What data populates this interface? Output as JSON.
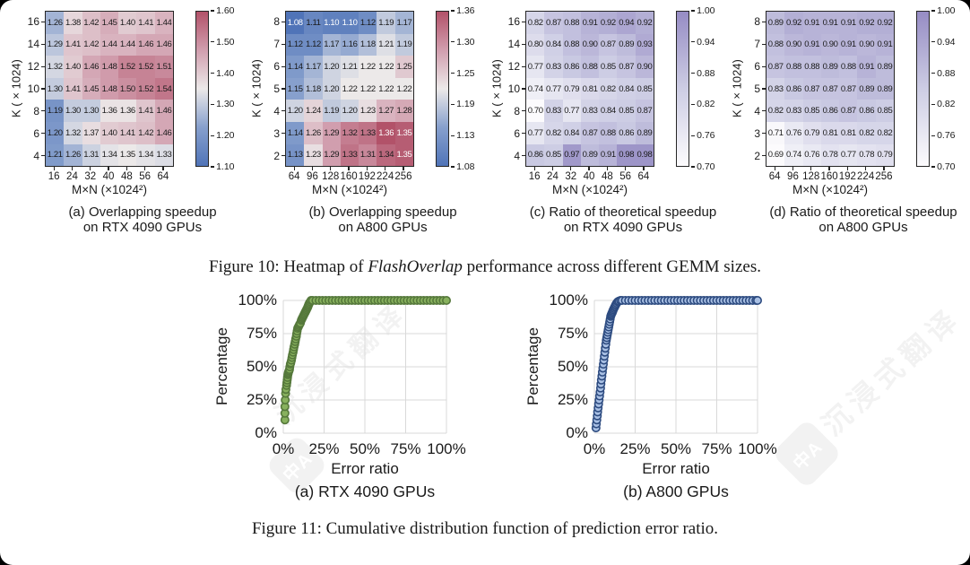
{
  "figure10_caption": {
    "prefix": "Figure 10: Heatmap of ",
    "italic": "FlashOverlap",
    "suffix": " performance across different GEMM sizes."
  },
  "figure11_caption": "Figure 11: Cumulative distribution function of prediction error ratio.",
  "watermark": {
    "text": "沉浸式翻译",
    "logo_text": "中A"
  },
  "chart_data": [
    {
      "id": "fig10a",
      "type": "heatmap",
      "title_line1": "(a) Overlapping speedup",
      "title_line2": "on RTX 4090 GPUs",
      "xlabel": "M×N (×1024²)",
      "ylabel": "K (×1024)",
      "x_categories": [
        "16",
        "24",
        "32",
        "40",
        "48",
        "56",
        "64"
      ],
      "y_categories": [
        "16",
        "14",
        "12",
        "10",
        "8",
        "6",
        "4"
      ],
      "vmin": 1.1,
      "vmax": 1.6,
      "colorbar_ticks": [
        "1.60",
        "1.50",
        "1.40",
        "1.30",
        "1.20",
        "1.10"
      ],
      "colormap": "diverging-blue-red",
      "colormap_anchors": [
        "#5074b8",
        "#87a0cd",
        "#ece9e9",
        "#d19eae",
        "#b25269"
      ],
      "values": [
        [
          "1.26",
          "1.38",
          "1.42",
          "1.45",
          "1.40",
          "1.41",
          "1.44"
        ],
        [
          "1.29",
          "1.41",
          "1.42",
          "1.44",
          "1.44",
          "1.46",
          "1.46"
        ],
        [
          "1.32",
          "1.40",
          "1.46",
          "1.48",
          "1.52",
          "1.52",
          "1.51"
        ],
        [
          "1.30",
          "1.41",
          "1.45",
          "1.48",
          "1.50",
          "1.52",
          "1.54"
        ],
        [
          "1.19",
          "1.30",
          "1.30",
          "1.36",
          "1.36",
          "1.41",
          "1.46"
        ],
        [
          "1.20",
          "1.32",
          "1.37",
          "1.40",
          "1.41",
          "1.42",
          "1.46"
        ],
        [
          "1.21",
          "1.26",
          "1.31",
          "1.34",
          "1.35",
          "1.34",
          "1.33"
        ]
      ]
    },
    {
      "id": "fig10b",
      "type": "heatmap",
      "title_line1": "(b) Overlapping speedup",
      "title_line2": "on A800 GPUs",
      "xlabel": "M×N (×1024²)",
      "ylabel": "K (×1024)",
      "x_categories": [
        "64",
        "96",
        "128",
        "160",
        "192",
        "224",
        "256"
      ],
      "y_categories": [
        "8",
        "7",
        "6",
        "5",
        "4",
        "3",
        "2"
      ],
      "vmin": 1.08,
      "vmax": 1.36,
      "colorbar_ticks": [
        "1.36",
        "1.30",
        "1.25",
        "1.19",
        "1.13",
        "1.08"
      ],
      "colormap": "diverging-blue-red",
      "colormap_anchors": [
        "#5074b8",
        "#87a0cd",
        "#ece9e9",
        "#d19eae",
        "#b25269"
      ],
      "values": [
        [
          "1.08",
          "1.11",
          "1.10",
          "1.10",
          "1.12",
          "1.19",
          "1.17"
        ],
        [
          "1.12",
          "1.12",
          "1.17",
          "1.16",
          "1.18",
          "1.21",
          "1.19"
        ],
        [
          "1.14",
          "1.17",
          "1.20",
          "1.21",
          "1.22",
          "1.22",
          "1.25"
        ],
        [
          "1.15",
          "1.18",
          "1.20",
          "1.22",
          "1.22",
          "1.22",
          "1.22"
        ],
        [
          "1.20",
          "1.24",
          "1.19",
          "1.20",
          "1.23",
          "1.27",
          "1.28"
        ],
        [
          "1.14",
          "1.26",
          "1.29",
          "1.32",
          "1.33",
          "1.36",
          "1.35"
        ],
        [
          "1.13",
          "1.23",
          "1.29",
          "1.33",
          "1.31",
          "1.34",
          "1.35"
        ]
      ]
    },
    {
      "id": "fig10c",
      "type": "heatmap",
      "title_line1": "(c) Ratio of theoretical speedup",
      "title_line2": "on RTX 4090 GPUs",
      "xlabel": "M×N (×1024²)",
      "ylabel": "K (×1024)",
      "x_categories": [
        "16",
        "24",
        "32",
        "40",
        "48",
        "56",
        "64"
      ],
      "y_categories": [
        "16",
        "14",
        "12",
        "10",
        "8",
        "6",
        "4"
      ],
      "vmin": 0.7,
      "vmax": 1.0,
      "colorbar_ticks": [
        "1.00",
        "0.94",
        "0.88",
        "0.82",
        "0.76",
        "0.70"
      ],
      "colormap": "purples",
      "colormap_anchors": [
        "#fcfbfd",
        "#cdcde4",
        "#968cc4"
      ],
      "values": [
        [
          "0.82",
          "0.87",
          "0.88",
          "0.91",
          "0.92",
          "0.94",
          "0.92"
        ],
        [
          "0.80",
          "0.84",
          "0.88",
          "0.90",
          "0.87",
          "0.89",
          "0.93"
        ],
        [
          "0.77",
          "0.83",
          "0.86",
          "0.88",
          "0.85",
          "0.87",
          "0.90"
        ],
        [
          "0.74",
          "0.77",
          "0.79",
          "0.81",
          "0.82",
          "0.84",
          "0.85"
        ],
        [
          "0.70",
          "0.83",
          "0.77",
          "0.83",
          "0.84",
          "0.85",
          "0.87"
        ],
        [
          "0.77",
          "0.82",
          "0.84",
          "0.87",
          "0.88",
          "0.86",
          "0.89"
        ],
        [
          "0.86",
          "0.85",
          "0.97",
          "0.89",
          "0.91",
          "0.98",
          "0.98"
        ]
      ]
    },
    {
      "id": "fig10d",
      "type": "heatmap",
      "title_line1": "(d) Ratio of theoretical speedup",
      "title_line2": "on A800 GPUs",
      "xlabel": "M×N (×1024²)",
      "ylabel": "K (×1024)",
      "x_categories": [
        "64",
        "96",
        "128",
        "160",
        "192",
        "224",
        "256"
      ],
      "y_categories": [
        "8",
        "7",
        "6",
        "5",
        "4",
        "3",
        "2"
      ],
      "vmin": 0.7,
      "vmax": 1.0,
      "colorbar_ticks": [
        "1.00",
        "0.94",
        "0.88",
        "0.82",
        "0.76",
        "0.70"
      ],
      "colormap": "purples",
      "colormap_anchors": [
        "#fcfbfd",
        "#cdcde4",
        "#968cc4"
      ],
      "values": [
        [
          "0.89",
          "0.92",
          "0.91",
          "0.91",
          "0.91",
          "0.92",
          "0.92"
        ],
        [
          "0.88",
          "0.90",
          "0.91",
          "0.90",
          "0.91",
          "0.90",
          "0.91"
        ],
        [
          "0.87",
          "0.88",
          "0.88",
          "0.89",
          "0.88",
          "0.91",
          "0.89"
        ],
        [
          "0.83",
          "0.86",
          "0.87",
          "0.87",
          "0.87",
          "0.89",
          "0.89"
        ],
        [
          "0.82",
          "0.83",
          "0.85",
          "0.86",
          "0.87",
          "0.86",
          "0.85"
        ],
        [
          "0.71",
          "0.76",
          "0.79",
          "0.81",
          "0.81",
          "0.82",
          "0.82"
        ],
        [
          "0.69",
          "0.74",
          "0.76",
          "0.78",
          "0.77",
          "0.78",
          "0.79"
        ]
      ]
    },
    {
      "id": "fig11a",
      "type": "scatter",
      "caption": "(a) RTX 4090 GPUs",
      "xlabel": "Error ratio",
      "ylabel": "Percentage",
      "xlim": [
        0,
        100
      ],
      "ylim": [
        0,
        100
      ],
      "grid": true,
      "xticks": [
        "0%",
        "25%",
        "50%",
        "75%",
        "100%"
      ],
      "yticks": [
        "0%",
        "25%",
        "50%",
        "75%",
        "100%"
      ],
      "marker_edge": "#55783b",
      "marker_fill": "#88b15e",
      "points": [
        [
          1,
          10
        ],
        [
          1,
          15
        ],
        [
          1,
          20
        ],
        [
          1.2,
          25
        ],
        [
          1.4,
          30
        ],
        [
          1.6,
          33
        ],
        [
          2,
          36
        ],
        [
          2.2,
          38
        ],
        [
          2.4,
          40
        ],
        [
          2.6,
          42
        ],
        [
          2.8,
          44
        ],
        [
          3,
          45
        ],
        [
          3.2,
          46
        ],
        [
          3.5,
          47
        ],
        [
          3.8,
          48
        ],
        [
          4,
          50
        ],
        [
          4.3,
          52
        ],
        [
          4.6,
          53
        ],
        [
          5,
          55
        ],
        [
          5.3,
          57
        ],
        [
          5.6,
          59
        ],
        [
          6,
          61
        ],
        [
          6.3,
          63
        ],
        [
          6.6,
          65
        ],
        [
          7,
          67
        ],
        [
          7.3,
          69
        ],
        [
          7.6,
          71
        ],
        [
          8,
          73
        ],
        [
          8.2,
          75
        ],
        [
          8.5,
          77
        ],
        [
          8.8,
          79
        ],
        [
          9.2,
          80
        ],
        [
          9.6,
          81
        ],
        [
          10,
          82
        ],
        [
          10.5,
          83
        ],
        [
          11,
          85
        ],
        [
          11.4,
          86
        ],
        [
          11.8,
          87
        ],
        [
          12.2,
          88
        ],
        [
          12.6,
          89
        ],
        [
          13,
          90
        ],
        [
          13.4,
          91
        ],
        [
          13.8,
          92
        ],
        [
          14.2,
          93
        ],
        [
          14.6,
          94
        ],
        [
          15,
          95
        ],
        [
          15.3,
          96
        ],
        [
          15.6,
          97
        ],
        [
          16,
          98
        ],
        [
          16.5,
          99
        ],
        [
          17,
          100
        ],
        [
          18,
          100
        ],
        [
          20,
          100
        ],
        [
          22,
          100
        ],
        [
          24,
          100
        ],
        [
          26,
          100
        ],
        [
          28,
          100
        ],
        [
          30,
          100
        ],
        [
          32,
          100
        ],
        [
          34,
          100
        ],
        [
          36,
          100
        ],
        [
          38,
          100
        ],
        [
          40,
          100
        ],
        [
          42,
          100
        ],
        [
          44,
          100
        ],
        [
          46,
          100
        ],
        [
          48,
          100
        ],
        [
          50,
          100
        ],
        [
          52,
          100
        ],
        [
          54,
          100
        ],
        [
          56,
          100
        ],
        [
          58,
          100
        ],
        [
          60,
          100
        ],
        [
          62,
          100
        ],
        [
          64,
          100
        ],
        [
          66,
          100
        ],
        [
          68,
          100
        ],
        [
          70,
          100
        ],
        [
          72,
          100
        ],
        [
          74,
          100
        ],
        [
          76,
          100
        ],
        [
          78,
          100
        ],
        [
          80,
          100
        ],
        [
          82,
          100
        ],
        [
          84,
          100
        ],
        [
          86,
          100
        ],
        [
          88,
          100
        ],
        [
          90,
          100
        ],
        [
          92,
          100
        ],
        [
          94,
          100
        ],
        [
          96,
          100
        ],
        [
          98,
          100
        ],
        [
          100,
          100
        ]
      ]
    },
    {
      "id": "fig11b",
      "type": "scatter",
      "caption": "(b) A800 GPUs",
      "xlabel": "Error ratio",
      "ylabel": "Percentage",
      "xlim": [
        0,
        100
      ],
      "ylim": [
        0,
        100
      ],
      "grid": true,
      "xticks": [
        "0%",
        "25%",
        "50%",
        "75%",
        "100%"
      ],
      "yticks": [
        "0%",
        "25%",
        "50%",
        "75%",
        "100%"
      ],
      "marker_edge": "#2d4b80",
      "marker_fill": "#a9c0e4",
      "points": [
        [
          1,
          4
        ],
        [
          1.2,
          7
        ],
        [
          1.5,
          10
        ],
        [
          1.8,
          13
        ],
        [
          2,
          16
        ],
        [
          2.3,
          19
        ],
        [
          2.6,
          22
        ],
        [
          2.9,
          25
        ],
        [
          3.2,
          28
        ],
        [
          3.5,
          31
        ],
        [
          3.8,
          34
        ],
        [
          4,
          37
        ],
        [
          4.3,
          40
        ],
        [
          4.6,
          43
        ],
        [
          4.9,
          46
        ],
        [
          5.2,
          49
        ],
        [
          5.5,
          52
        ],
        [
          5.8,
          55
        ],
        [
          6.1,
          58
        ],
        [
          6.4,
          61
        ],
        [
          6.7,
          64
        ],
        [
          7,
          67
        ],
        [
          7.3,
          70
        ],
        [
          7.6,
          72
        ],
        [
          7.9,
          74
        ],
        [
          8.2,
          76
        ],
        [
          8.5,
          78
        ],
        [
          8.8,
          80
        ],
        [
          9.1,
          82
        ],
        [
          9.4,
          84
        ],
        [
          9.7,
          86
        ],
        [
          10,
          88
        ],
        [
          10.3,
          89
        ],
        [
          10.6,
          90
        ],
        [
          11,
          91
        ],
        [
          11.3,
          92
        ],
        [
          11.6,
          93
        ],
        [
          12,
          94
        ],
        [
          12.4,
          95
        ],
        [
          12.8,
          96
        ],
        [
          13.2,
          97
        ],
        [
          13.7,
          98
        ],
        [
          14.3,
          99
        ],
        [
          15,
          99.5
        ],
        [
          16,
          100
        ],
        [
          17,
          100
        ],
        [
          19,
          100
        ],
        [
          21,
          100
        ],
        [
          23,
          100
        ],
        [
          25,
          100
        ],
        [
          27,
          100
        ],
        [
          29,
          100
        ],
        [
          31,
          100
        ],
        [
          33,
          100
        ],
        [
          35,
          100
        ],
        [
          37,
          100
        ],
        [
          39,
          100
        ],
        [
          41,
          100
        ],
        [
          43,
          100
        ],
        [
          45,
          100
        ],
        [
          47,
          100
        ],
        [
          49,
          100
        ],
        [
          51,
          100
        ],
        [
          53,
          100
        ],
        [
          55,
          100
        ],
        [
          57,
          100
        ],
        [
          59,
          100
        ],
        [
          61,
          100
        ],
        [
          63,
          100
        ],
        [
          65,
          100
        ],
        [
          67,
          100
        ],
        [
          69,
          100
        ],
        [
          71,
          100
        ],
        [
          73,
          100
        ],
        [
          75,
          100
        ],
        [
          77,
          100
        ],
        [
          79,
          100
        ],
        [
          81,
          100
        ],
        [
          83,
          100
        ],
        [
          85,
          100
        ],
        [
          87,
          100
        ],
        [
          89,
          100
        ],
        [
          91,
          100
        ],
        [
          93,
          100
        ],
        [
          95,
          100
        ],
        [
          97,
          100
        ],
        [
          99,
          100
        ],
        [
          100,
          100
        ]
      ]
    }
  ]
}
